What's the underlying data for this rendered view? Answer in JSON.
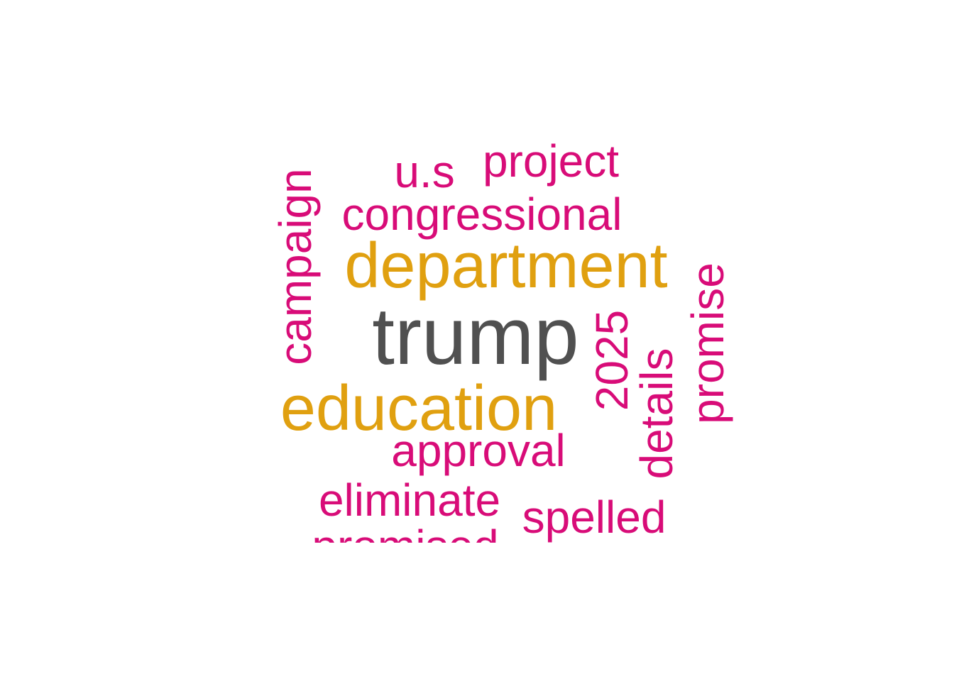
{
  "colors": {
    "top": "#505050",
    "high": "#E0A010",
    "mid": "#D80C78",
    "background": "#FFFFFF"
  },
  "words": [
    {
      "text": "trump",
      "tier": "top"
    },
    {
      "text": "department",
      "tier": "high"
    },
    {
      "text": "education",
      "tier": "high"
    },
    {
      "text": "congressional",
      "tier": "mid"
    },
    {
      "text": "project",
      "tier": "mid"
    },
    {
      "text": "u.s",
      "tier": "mid"
    },
    {
      "text": "campaign",
      "tier": "mid"
    },
    {
      "text": "2025",
      "tier": "mid"
    },
    {
      "text": "details",
      "tier": "mid"
    },
    {
      "text": "promise",
      "tier": "mid"
    },
    {
      "text": "approval",
      "tier": "mid"
    },
    {
      "text": "eliminate",
      "tier": "mid"
    },
    {
      "text": "spelled",
      "tier": "mid"
    },
    {
      "text": "promised",
      "tier": "mid"
    }
  ]
}
